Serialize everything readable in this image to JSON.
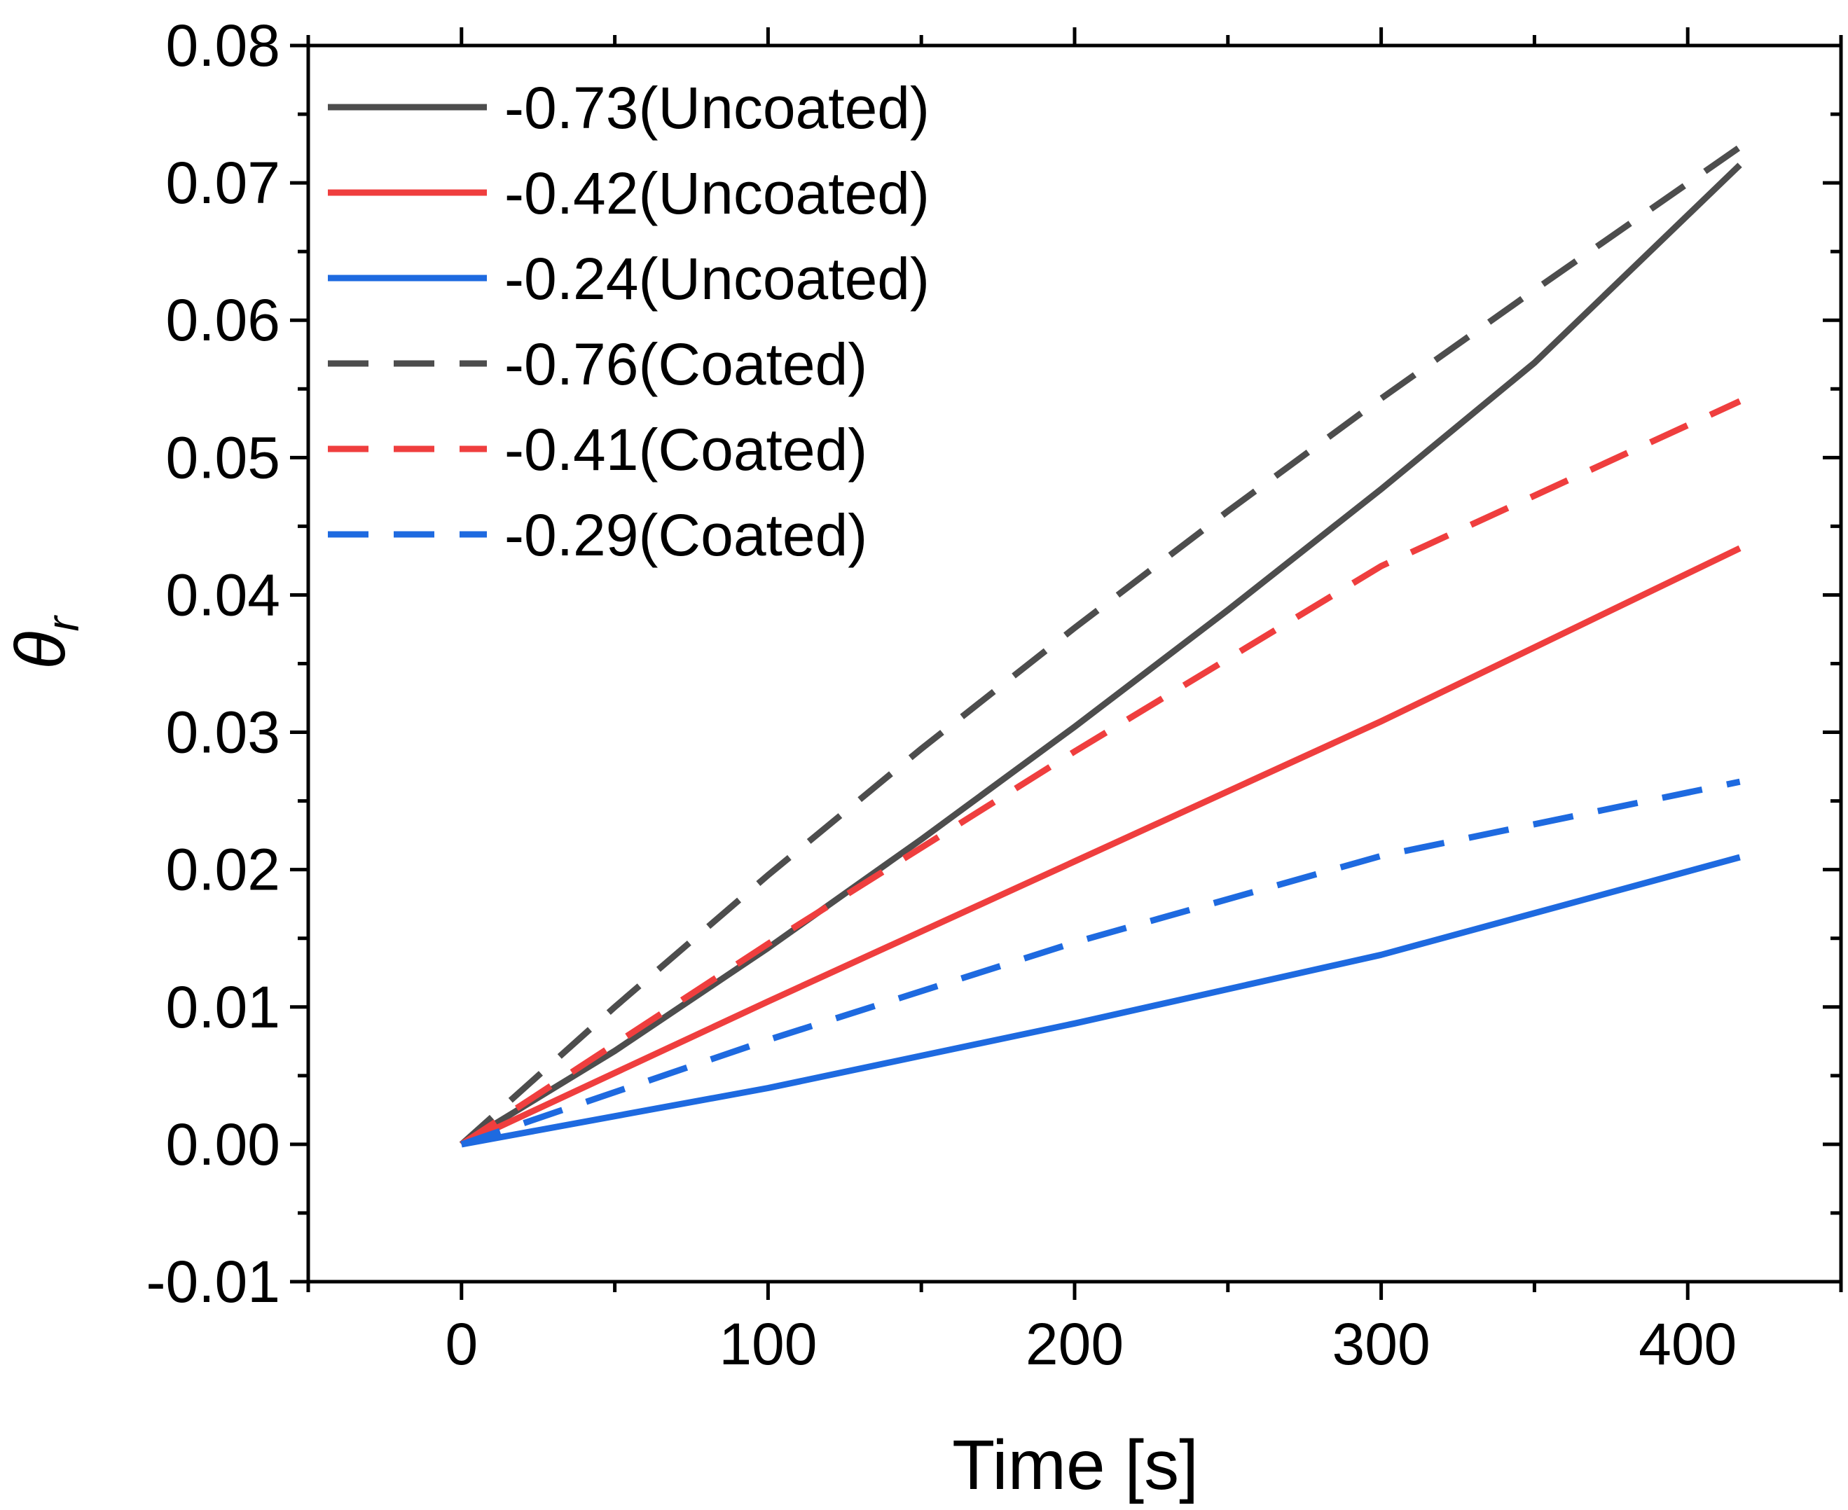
{
  "chart_data": {
    "type": "line",
    "title": "",
    "xlabel": "Time [s]",
    "ylabel": {
      "symbol": "θ",
      "subscript": "r"
    },
    "xlim": [
      -50,
      450
    ],
    "ylim": [
      -0.01,
      0.08
    ],
    "xticks": [
      0,
      100,
      200,
      300,
      400
    ],
    "xtick_labels": [
      "0",
      "100",
      "200",
      "300",
      "400"
    ],
    "yticks": [
      -0.01,
      0.0,
      0.01,
      0.02,
      0.03,
      0.04,
      0.05,
      0.06,
      0.07,
      0.08
    ],
    "ytick_labels": [
      "-0.01",
      "0.00",
      "0.01",
      "0.02",
      "0.03",
      "0.04",
      "0.05",
      "0.06",
      "0.07",
      "0.08"
    ],
    "grid": false,
    "legend_position": "top-left",
    "series": [
      {
        "name": "-0.73(Uncoated)",
        "color": "#4d4d4d",
        "style": "solid",
        "x": [
          0,
          50,
          100,
          150,
          200,
          250,
          300,
          350,
          417
        ],
        "y": [
          0,
          0.0068,
          0.0143,
          0.0222,
          0.0304,
          0.0389,
          0.0477,
          0.0569,
          0.0713
        ]
      },
      {
        "name": "-0.42(Uncoated)",
        "color": "#ef3e3e",
        "style": "solid",
        "x": [
          0,
          100,
          200,
          300,
          417
        ],
        "y": [
          0,
          0.0104,
          0.0206,
          0.0308,
          0.0434
        ]
      },
      {
        "name": "-0.24(Uncoated)",
        "color": "#1e6ae0",
        "style": "solid",
        "x": [
          0,
          100,
          200,
          300,
          417
        ],
        "y": [
          0,
          0.0041,
          0.0088,
          0.0138,
          0.0209
        ]
      },
      {
        "name": "-0.76(Coated)",
        "color": "#4d4d4d",
        "style": "dashed",
        "x": [
          0,
          50,
          100,
          150,
          200,
          250,
          300,
          350,
          417
        ],
        "y": [
          0,
          0.01,
          0.0196,
          0.0288,
          0.0376,
          0.0461,
          0.0543,
          0.0622,
          0.0726
        ]
      },
      {
        "name": "-0.41(Coated)",
        "color": "#ef3e3e",
        "style": "dashed",
        "x": [
          0,
          100,
          200,
          300,
          417
        ],
        "y": [
          0,
          0.0146,
          0.0286,
          0.0421,
          0.0541
        ]
      },
      {
        "name": "-0.29(Coated)",
        "color": "#1e6ae0",
        "style": "dashed",
        "x": [
          0,
          100,
          200,
          300,
          417
        ],
        "y": [
          0,
          0.0076,
          0.0147,
          0.021,
          0.0264
        ]
      }
    ]
  }
}
